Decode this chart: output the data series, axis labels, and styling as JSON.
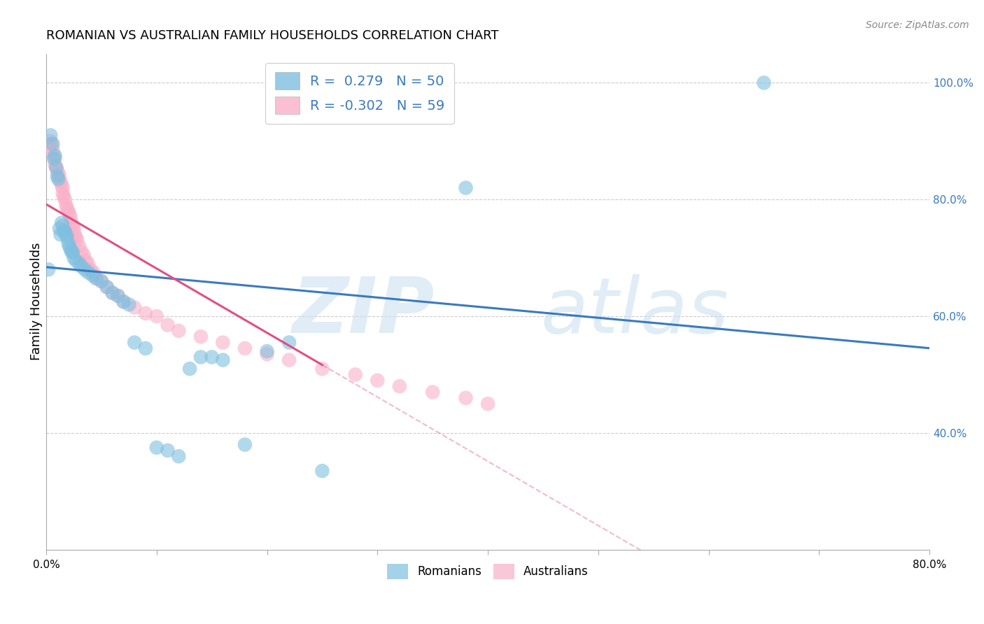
{
  "title": "ROMANIAN VS AUSTRALIAN FAMILY HOUSEHOLDS CORRELATION CHART",
  "source": "Source: ZipAtlas.com",
  "ylabel": "Family Households",
  "xlim": [
    0.0,
    0.8
  ],
  "ylim": [
    0.2,
    1.05
  ],
  "legend_r1": "R =  0.279   N = 50",
  "legend_r2": "R = -0.302   N = 59",
  "blue_color": "#7fbfdf",
  "pink_color": "#f9b0c8",
  "trend_blue": "#3a7abf",
  "trend_pink": "#e05080",
  "watermark_zip": "ZIP",
  "watermark_atlas": "atlas",
  "romanian_x": [
    0.002,
    0.004,
    0.006,
    0.007,
    0.008,
    0.009,
    0.01,
    0.011,
    0.012,
    0.013,
    0.014,
    0.015,
    0.016,
    0.017,
    0.018,
    0.019,
    0.02,
    0.021,
    0.022,
    0.023,
    0.024,
    0.025,
    0.027,
    0.03,
    0.032,
    0.035,
    0.038,
    0.042,
    0.045,
    0.05,
    0.055,
    0.06,
    0.065,
    0.07,
    0.075,
    0.08,
    0.09,
    0.1,
    0.11,
    0.12,
    0.13,
    0.14,
    0.15,
    0.16,
    0.18,
    0.2,
    0.22,
    0.25,
    0.38,
    0.65
  ],
  "romanian_y": [
    0.68,
    0.91,
    0.895,
    0.87,
    0.875,
    0.855,
    0.84,
    0.835,
    0.75,
    0.74,
    0.76,
    0.755,
    0.745,
    0.745,
    0.74,
    0.735,
    0.725,
    0.72,
    0.715,
    0.71,
    0.71,
    0.7,
    0.695,
    0.69,
    0.685,
    0.68,
    0.675,
    0.67,
    0.665,
    0.66,
    0.65,
    0.64,
    0.635,
    0.625,
    0.62,
    0.555,
    0.545,
    0.375,
    0.37,
    0.36,
    0.51,
    0.53,
    0.53,
    0.525,
    0.38,
    0.54,
    0.555,
    0.335,
    0.82,
    1.0
  ],
  "australian_x": [
    0.002,
    0.003,
    0.004,
    0.005,
    0.006,
    0.007,
    0.008,
    0.008,
    0.009,
    0.01,
    0.011,
    0.012,
    0.013,
    0.014,
    0.015,
    0.015,
    0.016,
    0.017,
    0.018,
    0.019,
    0.02,
    0.021,
    0.022,
    0.023,
    0.024,
    0.025,
    0.026,
    0.027,
    0.028,
    0.03,
    0.032,
    0.034,
    0.036,
    0.038,
    0.04,
    0.043,
    0.046,
    0.05,
    0.055,
    0.06,
    0.065,
    0.07,
    0.08,
    0.09,
    0.1,
    0.11,
    0.12,
    0.14,
    0.16,
    0.18,
    0.2,
    0.22,
    0.25,
    0.28,
    0.3,
    0.32,
    0.35,
    0.38,
    0.4
  ],
  "australian_y": [
    0.89,
    0.895,
    0.9,
    0.895,
    0.885,
    0.875,
    0.87,
    0.86,
    0.855,
    0.85,
    0.845,
    0.84,
    0.83,
    0.825,
    0.82,
    0.81,
    0.805,
    0.8,
    0.79,
    0.785,
    0.78,
    0.775,
    0.77,
    0.76,
    0.755,
    0.75,
    0.74,
    0.735,
    0.73,
    0.72,
    0.71,
    0.705,
    0.695,
    0.69,
    0.68,
    0.675,
    0.665,
    0.66,
    0.65,
    0.64,
    0.635,
    0.625,
    0.615,
    0.605,
    0.6,
    0.585,
    0.575,
    0.565,
    0.555,
    0.545,
    0.535,
    0.525,
    0.51,
    0.5,
    0.49,
    0.48,
    0.47,
    0.46,
    0.45
  ]
}
